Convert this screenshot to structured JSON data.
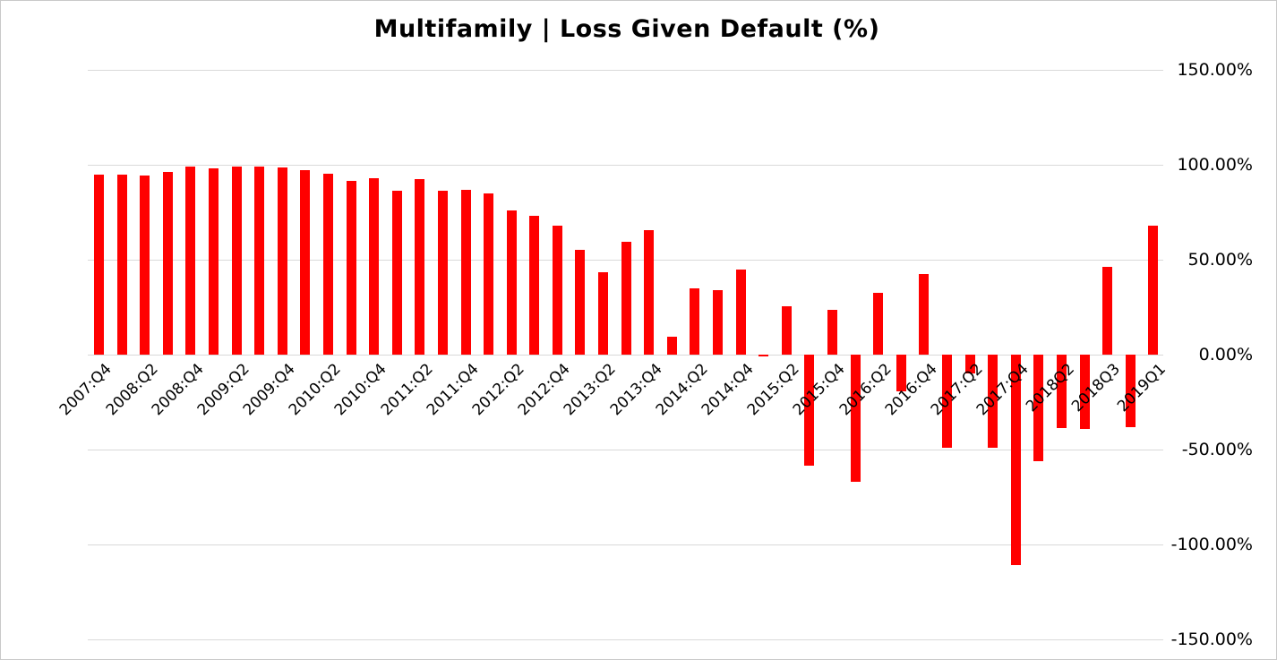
{
  "chart_data": {
    "type": "bar",
    "title": "Multifamily | Loss Given Default (%)",
    "xlabel": "",
    "ylabel": "",
    "ylim": [
      -150,
      150
    ],
    "grid": "horizontal",
    "legend_position": "none",
    "bar_color": "#FF0000",
    "gridline_color": "#D9D9D9",
    "y_ticks": [
      150,
      100,
      50,
      0,
      -50,
      -100,
      -150
    ],
    "y_tick_labels": [
      "150.00%",
      "100.00%",
      "50.00%",
      "0.00%",
      "-50.00%",
      "-100.00%",
      "-150.00%"
    ],
    "categories": [
      "2007:Q4",
      "",
      "2008:Q2",
      "",
      "2008:Q4",
      "",
      "2009:Q2",
      "",
      "2009:Q4",
      "",
      "2010:Q2",
      "",
      "2010:Q4",
      "",
      "2011:Q2",
      "",
      "2011:Q4",
      "",
      "2012:Q2",
      "",
      "2012:Q4",
      "",
      "2013:Q2",
      "",
      "2013:Q4",
      "",
      "2014:Q2",
      "",
      "2014:Q4",
      "",
      "2015:Q2",
      "",
      "2015:Q4",
      "",
      "2016:Q2",
      "",
      "2016:Q4",
      "",
      "2017:Q2",
      "",
      "2017:Q4",
      "",
      "2018Q2",
      "",
      "2018Q3",
      "",
      "2019Q1"
    ],
    "values": [
      95,
      95,
      94.5,
      96,
      99,
      98,
      99,
      99,
      98.5,
      97,
      95.5,
      91.5,
      93,
      86.5,
      92.5,
      86.5,
      87,
      85,
      76,
      73,
      68,
      55,
      43.5,
      59.5,
      65.5,
      9.5,
      35,
      34,
      45,
      -1,
      25.5,
      -58.5,
      23.5,
      -67,
      32.5,
      -19.5,
      42.5,
      -49,
      -10,
      -49,
      -111,
      -56,
      -38.5,
      -39,
      46,
      -38,
      68
    ]
  }
}
